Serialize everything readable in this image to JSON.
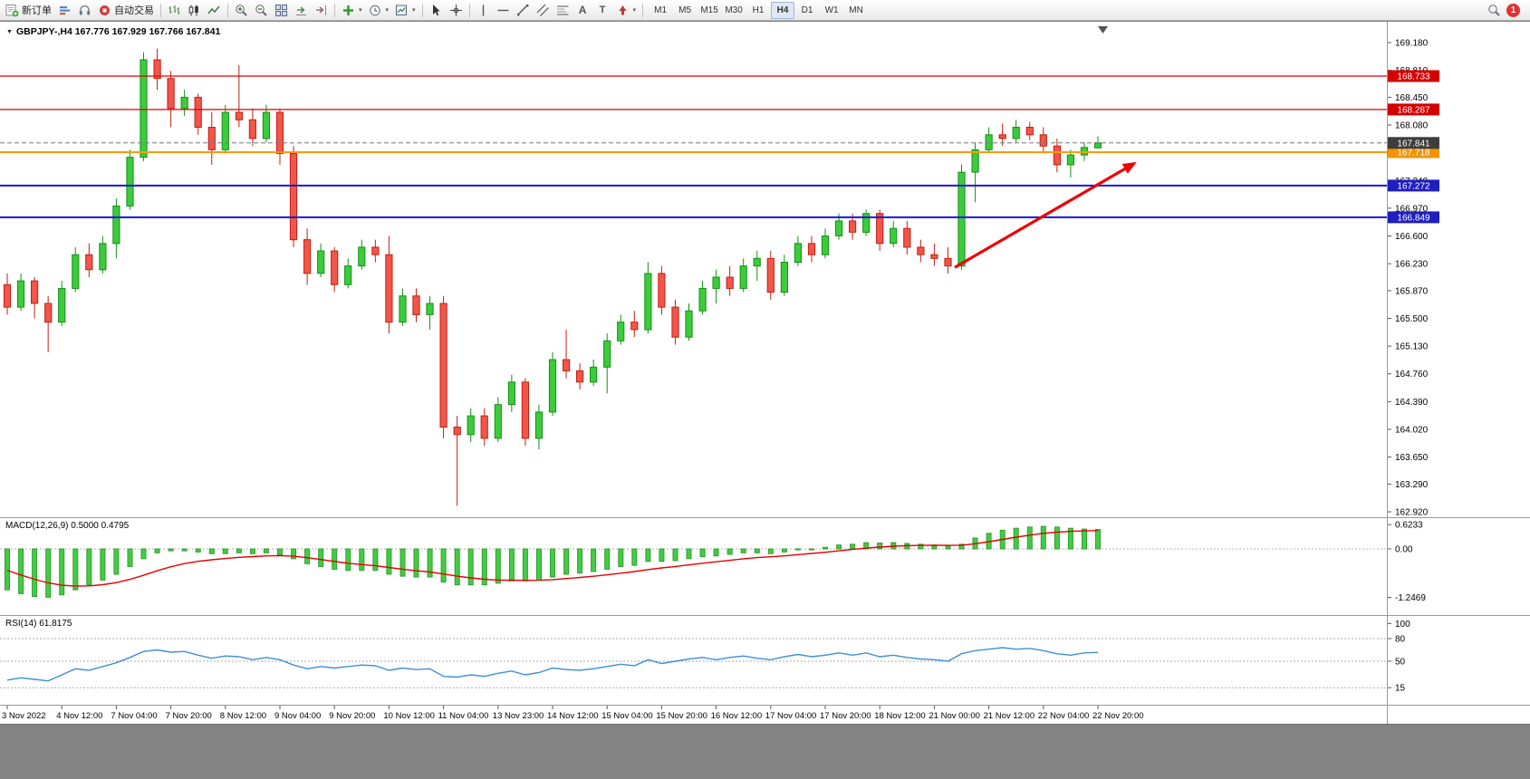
{
  "toolbar": {
    "new_order": "新订单",
    "autotrading": "自动交易",
    "timeframes": [
      "M1",
      "M5",
      "M15",
      "M30",
      "H1",
      "H4",
      "D1",
      "W1",
      "MN"
    ],
    "active_timeframe": "H4",
    "notification_count": "1"
  },
  "chart": {
    "symbol_label": "GBPJPY-,H4 167.776 167.929 167.766 167.841",
    "macd_label": "MACD(12,26,9) 0.5000 0.4795",
    "rsi_label": "RSI(14) 61.8175"
  },
  "chart_data": {
    "type": "candlestick",
    "symbol": "GBPJPY-",
    "timeframe": "H4",
    "ohlc_current": {
      "open": 167.776,
      "high": 167.929,
      "low": 167.766,
      "close": 167.841
    },
    "price_axis_ticks": [
      169.18,
      168.81,
      168.45,
      168.08,
      167.71,
      167.34,
      166.97,
      166.6,
      166.23,
      165.87,
      165.5,
      165.13,
      164.76,
      164.39,
      164.02,
      163.65,
      163.29,
      162.92
    ],
    "time_labels": [
      "3 Nov 2022",
      "4 Nov 12:00",
      "7 Nov 04:00",
      "7 Nov 20:00",
      "8 Nov 12:00",
      "9 Nov 04:00",
      "9 Nov 20:00",
      "10 Nov 12:00",
      "11 Nov 04:00",
      "13 Nov 23:00",
      "14 Nov 12:00",
      "15 Nov 04:00",
      "15 Nov 20:00",
      "16 Nov 12:00",
      "17 Nov 04:00",
      "17 Nov 20:00",
      "18 Nov 12:00",
      "21 Nov 00:00",
      "21 Nov 12:00",
      "22 Nov 04:00",
      "22 Nov 20:00"
    ],
    "candles": [
      [
        165.95,
        166.1,
        165.55,
        165.65
      ],
      [
        165.65,
        166.1,
        165.6,
        166.0
      ],
      [
        166.0,
        166.05,
        165.5,
        165.7
      ],
      [
        165.7,
        165.8,
        165.05,
        165.45
      ],
      [
        165.45,
        166.0,
        165.4,
        165.9
      ],
      [
        165.9,
        166.45,
        165.85,
        166.35
      ],
      [
        166.35,
        166.5,
        166.05,
        166.15
      ],
      [
        166.15,
        166.6,
        166.1,
        166.5
      ],
      [
        166.5,
        167.1,
        166.3,
        167.0
      ],
      [
        167.0,
        167.75,
        166.95,
        167.65
      ],
      [
        167.65,
        169.05,
        167.6,
        168.95
      ],
      [
        168.95,
        169.1,
        168.55,
        168.7
      ],
      [
        168.7,
        168.8,
        168.05,
        168.3
      ],
      [
        168.3,
        168.55,
        168.2,
        168.45
      ],
      [
        168.45,
        168.5,
        167.95,
        168.05
      ],
      [
        168.05,
        168.25,
        167.55,
        167.75
      ],
      [
        167.75,
        168.35,
        167.7,
        168.25
      ],
      [
        168.25,
        168.88,
        168.05,
        168.15
      ],
      [
        168.15,
        168.3,
        167.8,
        167.9
      ],
      [
        167.9,
        168.35,
        167.85,
        168.25
      ],
      [
        168.25,
        168.3,
        167.55,
        167.7
      ],
      [
        167.7,
        167.8,
        166.45,
        166.55
      ],
      [
        166.55,
        166.7,
        165.95,
        166.1
      ],
      [
        166.1,
        166.5,
        166.05,
        166.4
      ],
      [
        166.4,
        166.45,
        165.85,
        165.95
      ],
      [
        165.95,
        166.3,
        165.9,
        166.2
      ],
      [
        166.2,
        166.55,
        166.15,
        166.45
      ],
      [
        166.45,
        166.55,
        166.25,
        166.35
      ],
      [
        166.35,
        166.6,
        165.3,
        165.45
      ],
      [
        165.45,
        165.9,
        165.4,
        165.8
      ],
      [
        165.8,
        165.9,
        165.45,
        165.55
      ],
      [
        165.55,
        165.8,
        165.35,
        165.7
      ],
      [
        165.7,
        165.8,
        163.9,
        164.05
      ],
      [
        164.05,
        164.2,
        163.0,
        163.95
      ],
      [
        163.95,
        164.3,
        163.85,
        164.2
      ],
      [
        164.2,
        164.3,
        163.8,
        163.9
      ],
      [
        163.9,
        164.45,
        163.85,
        164.35
      ],
      [
        164.35,
        164.75,
        164.25,
        164.65
      ],
      [
        164.65,
        164.7,
        163.8,
        163.9
      ],
      [
        163.9,
        164.35,
        163.75,
        164.25
      ],
      [
        164.25,
        165.05,
        164.2,
        164.95
      ],
      [
        164.95,
        165.35,
        164.7,
        164.8
      ],
      [
        164.8,
        164.9,
        164.55,
        164.65
      ],
      [
        164.65,
        164.95,
        164.6,
        164.85
      ],
      [
        164.85,
        165.3,
        164.5,
        165.2
      ],
      [
        165.2,
        165.55,
        165.15,
        165.45
      ],
      [
        165.45,
        165.6,
        165.25,
        165.35
      ],
      [
        165.35,
        166.25,
        165.3,
        166.1
      ],
      [
        166.1,
        166.2,
        165.55,
        165.65
      ],
      [
        165.65,
        165.75,
        165.15,
        165.25
      ],
      [
        165.25,
        165.7,
        165.2,
        165.6
      ],
      [
        165.6,
        166.0,
        165.55,
        165.9
      ],
      [
        165.9,
        166.15,
        165.7,
        166.05
      ],
      [
        166.05,
        166.2,
        165.8,
        165.9
      ],
      [
        165.9,
        166.3,
        165.85,
        166.2
      ],
      [
        166.2,
        166.4,
        166.0,
        166.3
      ],
      [
        166.3,
        166.4,
        165.75,
        165.85
      ],
      [
        165.85,
        166.35,
        165.8,
        166.25
      ],
      [
        166.25,
        166.6,
        166.2,
        166.5
      ],
      [
        166.5,
        166.6,
        166.25,
        166.35
      ],
      [
        166.35,
        166.7,
        166.3,
        166.6
      ],
      [
        166.6,
        166.9,
        166.55,
        166.8
      ],
      [
        166.8,
        166.9,
        166.55,
        166.65
      ],
      [
        166.65,
        166.95,
        166.6,
        166.9
      ],
      [
        166.9,
        166.95,
        166.4,
        166.5
      ],
      [
        166.5,
        166.8,
        166.45,
        166.7
      ],
      [
        166.7,
        166.8,
        166.35,
        166.45
      ],
      [
        166.45,
        166.55,
        166.25,
        166.35
      ],
      [
        166.35,
        166.5,
        166.2,
        166.3
      ],
      [
        166.3,
        166.45,
        166.1,
        166.2
      ],
      [
        166.2,
        167.55,
        166.15,
        167.45
      ],
      [
        167.45,
        167.85,
        167.05,
        167.75
      ],
      [
        167.75,
        168.05,
        167.7,
        167.95
      ],
      [
        167.95,
        168.1,
        167.8,
        167.9
      ],
      [
        167.9,
        168.15,
        167.85,
        168.05
      ],
      [
        168.05,
        168.12,
        167.88,
        167.95
      ],
      [
        167.95,
        168.05,
        167.7,
        167.8
      ],
      [
        167.8,
        167.9,
        167.45,
        167.55
      ],
      [
        167.55,
        167.75,
        167.38,
        167.68
      ],
      [
        167.68,
        167.85,
        167.6,
        167.78
      ],
      [
        167.776,
        167.929,
        167.766,
        167.841
      ]
    ],
    "levels": [
      {
        "price": 168.733,
        "label": "168.733",
        "color": "#e00000",
        "width": 1.2,
        "label_bg": "#d40000"
      },
      {
        "price": 168.287,
        "label": "168.287",
        "color": "#e00000",
        "width": 1.2,
        "label_bg": "#d40000"
      },
      {
        "price": 167.718,
        "label": "167.718",
        "color": "#ff9b00",
        "width": 2,
        "label_bg": "#f29400"
      },
      {
        "price": 167.272,
        "label": "167.272",
        "color": "#1717d8",
        "width": 2,
        "label_bg": "#1f1fbf"
      },
      {
        "price": 166.849,
        "label": "166.849",
        "color": "#1717d8",
        "width": 2,
        "label_bg": "#1f1fbf"
      },
      {
        "price": 167.841,
        "label": "167.841",
        "color": "#777777",
        "width": 1,
        "style": "dash",
        "label_bg": "#3d3d3d",
        "current": true
      }
    ],
    "macd": {
      "params": "12,26,9",
      "value": 0.5,
      "signal_value": 0.4795,
      "signal_seed": -0.55,
      "axis": [
        0.6233,
        0,
        -1.2469
      ],
      "values": [
        -1.05,
        -1.15,
        -1.22,
        -1.24,
        -1.18,
        -1.05,
        -0.92,
        -0.8,
        -0.65,
        -0.45,
        -0.25,
        -0.1,
        -0.05,
        -0.05,
        -0.08,
        -0.12,
        -0.12,
        -0.1,
        -0.12,
        -0.1,
        -0.15,
        -0.25,
        -0.38,
        -0.45,
        -0.52,
        -0.55,
        -0.55,
        -0.55,
        -0.65,
        -0.7,
        -0.72,
        -0.72,
        -0.85,
        -0.92,
        -0.92,
        -0.92,
        -0.88,
        -0.82,
        -0.82,
        -0.8,
        -0.72,
        -0.65,
        -0.62,
        -0.58,
        -0.52,
        -0.45,
        -0.42,
        -0.32,
        -0.32,
        -0.3,
        -0.25,
        -0.2,
        -0.18,
        -0.14,
        -0.1,
        -0.1,
        -0.12,
        -0.08,
        -0.02,
        0.0,
        0.04,
        0.1,
        0.12,
        0.16,
        0.15,
        0.16,
        0.14,
        0.12,
        0.1,
        0.08,
        0.12,
        0.28,
        0.4,
        0.48,
        0.53,
        0.56,
        0.58,
        0.56,
        0.53,
        0.51,
        0.5
      ]
    },
    "rsi": {
      "period": 14,
      "value": 61.8175,
      "levels": [
        80,
        50,
        15
      ],
      "axis_labels": [
        "100",
        "80",
        "50",
        "15"
      ],
      "values": [
        25,
        28,
        26,
        24,
        32,
        40,
        38,
        43,
        48,
        55,
        63,
        65,
        62,
        63,
        58,
        54,
        57,
        56,
        52,
        55,
        52,
        45,
        40,
        43,
        41,
        43,
        45,
        44,
        38,
        41,
        39,
        40,
        30,
        29,
        32,
        30,
        34,
        37,
        32,
        35,
        41,
        39,
        38,
        40,
        43,
        46,
        44,
        52,
        47,
        50,
        53,
        55,
        52,
        55,
        57,
        54,
        52,
        56,
        59,
        56,
        58,
        61,
        58,
        61,
        56,
        58,
        55,
        53,
        52,
        50,
        60,
        64,
        66,
        68,
        66,
        67,
        64,
        60,
        58,
        61,
        61.8
      ]
    },
    "annotation_arrow": {
      "color": "#f00000",
      "from": {
        "i": 69.5,
        "price": 166.18
      },
      "to": {
        "i": 82.5,
        "price": 167.55
      }
    },
    "colors": {
      "bull": "#3ccb3c",
      "bull_border": "#159015",
      "bear": "#f2564a",
      "bear_border": "#c21f10",
      "macd_hist": "#44cc44",
      "macd_hist_border": "#2f9e2f",
      "macd_signal": "#e80000",
      "rsi_line": "#3d8fd8"
    }
  }
}
